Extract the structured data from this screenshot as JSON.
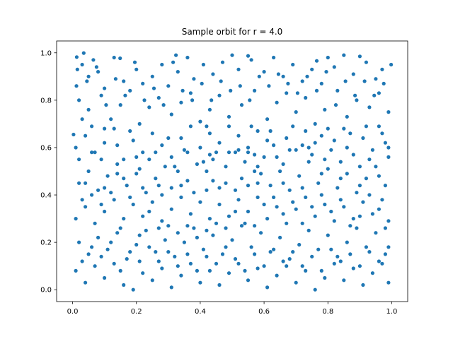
{
  "chart_data": {
    "type": "scatter",
    "title": "Sample orbit for r = 4.0",
    "xlabel": "",
    "ylabel": "",
    "xlim": [
      -0.05,
      1.05
    ],
    "ylim": [
      -0.05,
      1.05
    ],
    "xticks": [
      0.0,
      0.2,
      0.4,
      0.6,
      0.8,
      1.0
    ],
    "xtick_labels": [
      "0.0",
      "0.2",
      "0.4",
      "0.6",
      "0.8",
      "1.0"
    ],
    "yticks": [
      0.0,
      0.2,
      0.4,
      0.6,
      0.8,
      1.0
    ],
    "ytick_labels": [
      "0.0",
      "0.2",
      "0.4",
      "0.6",
      "0.8",
      "1.0"
    ],
    "grid": false,
    "legend": "none",
    "marker_color": "#1f77b4",
    "points": [
      [
        0.003,
        0.655
      ],
      [
        0.013,
        0.982
      ],
      [
        0.035,
        0.999
      ],
      [
        0.065,
        0.97
      ],
      [
        0.149,
        0.977
      ],
      [
        0.324,
        0.99
      ],
      [
        0.5,
        0.99
      ],
      [
        0.55,
        0.987
      ],
      [
        0.765,
        0.966
      ],
      [
        0.8,
        0.98
      ],
      [
        0.9,
        0.985
      ],
      [
        0.998,
        0.95
      ],
      [
        0.012,
        0.86
      ],
      [
        0.03,
        0.95
      ],
      [
        0.05,
        0.9
      ],
      [
        0.08,
        0.92
      ],
      [
        0.1,
        0.85
      ],
      [
        0.13,
        0.98
      ],
      [
        0.16,
        0.88
      ],
      [
        0.2,
        0.93
      ],
      [
        0.22,
        0.87
      ],
      [
        0.25,
        0.9
      ],
      [
        0.28,
        0.95
      ],
      [
        0.3,
        0.86
      ],
      [
        0.33,
        0.92
      ],
      [
        0.36,
        0.98
      ],
      [
        0.38,
        0.89
      ],
      [
        0.41,
        0.95
      ],
      [
        0.44,
        0.91
      ],
      [
        0.47,
        0.96
      ],
      [
        0.52,
        0.93
      ],
      [
        0.56,
        0.97
      ],
      [
        0.6,
        0.92
      ],
      [
        0.63,
        0.98
      ],
      [
        0.66,
        0.9
      ],
      [
        0.69,
        0.95
      ],
      [
        0.72,
        0.88
      ],
      [
        0.75,
        0.93
      ],
      [
        0.78,
        0.87
      ],
      [
        0.82,
        0.94
      ],
      [
        0.85,
        0.99
      ],
      [
        0.88,
        0.91
      ],
      [
        0.92,
        0.96
      ],
      [
        0.95,
        0.89
      ],
      [
        0.97,
        0.93
      ],
      [
        0.02,
        0.8
      ],
      [
        0.05,
        0.76
      ],
      [
        0.09,
        0.82
      ],
      [
        0.12,
        0.72
      ],
      [
        0.15,
        0.78
      ],
      [
        0.18,
        0.84
      ],
      [
        0.21,
        0.7
      ],
      [
        0.24,
        0.77
      ],
      [
        0.27,
        0.81
      ],
      [
        0.31,
        0.74
      ],
      [
        0.34,
        0.79
      ],
      [
        0.37,
        0.83
      ],
      [
        0.4,
        0.71
      ],
      [
        0.43,
        0.76
      ],
      [
        0.46,
        0.82
      ],
      [
        0.49,
        0.73
      ],
      [
        0.53,
        0.78
      ],
      [
        0.57,
        0.84
      ],
      [
        0.61,
        0.72
      ],
      [
        0.64,
        0.79
      ],
      [
        0.67,
        0.83
      ],
      [
        0.7,
        0.75
      ],
      [
        0.73,
        0.81
      ],
      [
        0.76,
        0.7
      ],
      [
        0.79,
        0.76
      ],
      [
        0.83,
        0.84
      ],
      [
        0.86,
        0.73
      ],
      [
        0.89,
        0.8
      ],
      [
        0.93,
        0.77
      ],
      [
        0.96,
        0.83
      ],
      [
        0.99,
        0.75
      ],
      [
        0.01,
        0.6
      ],
      [
        0.04,
        0.65
      ],
      [
        0.07,
        0.58
      ],
      [
        0.1,
        0.62
      ],
      [
        0.13,
        0.68
      ],
      [
        0.16,
        0.55
      ],
      [
        0.19,
        0.63
      ],
      [
        0.22,
        0.58
      ],
      [
        0.25,
        0.66
      ],
      [
        0.28,
        0.61
      ],
      [
        0.31,
        0.56
      ],
      [
        0.34,
        0.64
      ],
      [
        0.37,
        0.69
      ],
      [
        0.4,
        0.6
      ],
      [
        0.43,
        0.66
      ],
      [
        0.46,
        0.62
      ],
      [
        0.49,
        0.69
      ],
      [
        0.52,
        0.65
      ],
      [
        0.55,
        0.6
      ],
      [
        0.58,
        0.67
      ],
      [
        0.61,
        0.63
      ],
      [
        0.64,
        0.56
      ],
      [
        0.67,
        0.64
      ],
      [
        0.7,
        0.59
      ],
      [
        0.73,
        0.67
      ],
      [
        0.76,
        0.62
      ],
      [
        0.79,
        0.55
      ],
      [
        0.82,
        0.63
      ],
      [
        0.85,
        0.68
      ],
      [
        0.88,
        0.57
      ],
      [
        0.91,
        0.64
      ],
      [
        0.94,
        0.59
      ],
      [
        0.97,
        0.66
      ],
      [
        0.99,
        0.6
      ],
      [
        0.02,
        0.45
      ],
      [
        0.05,
        0.5
      ],
      [
        0.08,
        0.42
      ],
      [
        0.11,
        0.48
      ],
      [
        0.14,
        0.53
      ],
      [
        0.17,
        0.44
      ],
      [
        0.2,
        0.49
      ],
      [
        0.23,
        0.41
      ],
      [
        0.26,
        0.47
      ],
      [
        0.29,
        0.52
      ],
      [
        0.31,
        0.43
      ],
      [
        0.33,
        0.5
      ],
      [
        0.36,
        0.46
      ],
      [
        0.39,
        0.53
      ],
      [
        0.62,
        0.44
      ],
      [
        0.65,
        0.5
      ],
      [
        0.68,
        0.42
      ],
      [
        0.71,
        0.48
      ],
      [
        0.74,
        0.54
      ],
      [
        0.77,
        0.45
      ],
      [
        0.8,
        0.51
      ],
      [
        0.83,
        0.43
      ],
      [
        0.86,
        0.49
      ],
      [
        0.89,
        0.41
      ],
      [
        0.92,
        0.47
      ],
      [
        0.95,
        0.52
      ],
      [
        0.98,
        0.44
      ],
      [
        0.01,
        0.3
      ],
      [
        0.04,
        0.35
      ],
      [
        0.07,
        0.28
      ],
      [
        0.1,
        0.33
      ],
      [
        0.13,
        0.38
      ],
      [
        0.16,
        0.3
      ],
      [
        0.19,
        0.36
      ],
      [
        0.22,
        0.31
      ],
      [
        0.25,
        0.37
      ],
      [
        0.28,
        0.29
      ],
      [
        0.31,
        0.34
      ],
      [
        0.34,
        0.39
      ],
      [
        0.37,
        0.32
      ],
      [
        0.4,
        0.37
      ],
      [
        0.43,
        0.3
      ],
      [
        0.46,
        0.36
      ],
      [
        0.49,
        0.31
      ],
      [
        0.52,
        0.38
      ],
      [
        0.55,
        0.33
      ],
      [
        0.58,
        0.39
      ],
      [
        0.61,
        0.3
      ],
      [
        0.64,
        0.35
      ],
      [
        0.67,
        0.28
      ],
      [
        0.7,
        0.34
      ],
      [
        0.73,
        0.39
      ],
      [
        0.76,
        0.31
      ],
      [
        0.79,
        0.36
      ],
      [
        0.82,
        0.29
      ],
      [
        0.85,
        0.35
      ],
      [
        0.88,
        0.3
      ],
      [
        0.91,
        0.37
      ],
      [
        0.94,
        0.32
      ],
      [
        0.97,
        0.38
      ],
      [
        0.99,
        0.29
      ],
      [
        0.02,
        0.2
      ],
      [
        0.05,
        0.15
      ],
      [
        0.08,
        0.22
      ],
      [
        0.11,
        0.17
      ],
      [
        0.14,
        0.24
      ],
      [
        0.17,
        0.13
      ],
      [
        0.2,
        0.19
      ],
      [
        0.23,
        0.25
      ],
      [
        0.26,
        0.16
      ],
      [
        0.29,
        0.21
      ],
      [
        0.32,
        0.14
      ],
      [
        0.35,
        0.2
      ],
      [
        0.38,
        0.26
      ],
      [
        0.41,
        0.17
      ],
      [
        0.44,
        0.23
      ],
      [
        0.47,
        0.15
      ],
      [
        0.5,
        0.21
      ],
      [
        0.53,
        0.27
      ],
      [
        0.56,
        0.18
      ],
      [
        0.59,
        0.24
      ],
      [
        0.62,
        0.16
      ],
      [
        0.65,
        0.22
      ],
      [
        0.68,
        0.13
      ],
      [
        0.71,
        0.19
      ],
      [
        0.74,
        0.25
      ],
      [
        0.77,
        0.17
      ],
      [
        0.8,
        0.23
      ],
      [
        0.83,
        0.14
      ],
      [
        0.86,
        0.2
      ],
      [
        0.89,
        0.26
      ],
      [
        0.92,
        0.18
      ],
      [
        0.95,
        0.24
      ],
      [
        0.98,
        0.15
      ],
      [
        0.01,
        0.08
      ],
      [
        0.04,
        0.03
      ],
      [
        0.07,
        0.1
      ],
      [
        0.1,
        0.05
      ],
      [
        0.13,
        0.11
      ],
      [
        0.16,
        0.02
      ],
      [
        0.19,
        0.0
      ],
      [
        0.22,
        0.07
      ],
      [
        0.25,
        0.04
      ],
      [
        0.28,
        0.09
      ],
      [
        0.31,
        0.01
      ],
      [
        0.34,
        0.06
      ],
      [
        0.37,
        0.11
      ],
      [
        0.4,
        0.03
      ],
      [
        0.43,
        0.08
      ],
      [
        0.46,
        0.02
      ],
      [
        0.49,
        0.07
      ],
      [
        0.52,
        0.11
      ],
      [
        0.55,
        0.04
      ],
      [
        0.58,
        0.09
      ],
      [
        0.61,
        0.01
      ],
      [
        0.64,
        0.06
      ],
      [
        0.67,
        0.1
      ],
      [
        0.7,
        0.03
      ],
      [
        0.73,
        0.08
      ],
      [
        0.76,
        0.0
      ],
      [
        0.79,
        0.05
      ],
      [
        0.82,
        0.11
      ],
      [
        0.85,
        0.04
      ],
      [
        0.88,
        0.09
      ],
      [
        0.91,
        0.02
      ],
      [
        0.94,
        0.07
      ],
      [
        0.97,
        0.11
      ],
      [
        0.99,
        0.03
      ],
      [
        0.03,
        0.72
      ],
      [
        0.06,
        0.69
      ],
      [
        0.09,
        0.55
      ],
      [
        0.14,
        0.61
      ],
      [
        0.18,
        0.67
      ],
      [
        0.21,
        0.51
      ],
      [
        0.24,
        0.55
      ],
      [
        0.27,
        0.44
      ],
      [
        0.3,
        0.64
      ],
      [
        0.35,
        0.59
      ],
      [
        0.38,
        0.41
      ],
      [
        0.44,
        0.55
      ],
      [
        0.48,
        0.52
      ],
      [
        0.51,
        0.58
      ],
      [
        0.54,
        0.54
      ],
      [
        0.57,
        0.5
      ],
      [
        0.6,
        0.56
      ],
      [
        0.63,
        0.61
      ],
      [
        0.66,
        0.53
      ],
      [
        0.69,
        0.69
      ],
      [
        0.72,
        0.61
      ],
      [
        0.75,
        0.57
      ],
      [
        0.78,
        0.65
      ],
      [
        0.81,
        0.59
      ],
      [
        0.84,
        0.54
      ],
      [
        0.87,
        0.66
      ],
      [
        0.9,
        0.52
      ],
      [
        0.93,
        0.55
      ],
      [
        0.96,
        0.69
      ],
      [
        0.99,
        0.56
      ],
      [
        0.03,
        0.38
      ],
      [
        0.06,
        0.4
      ],
      [
        0.09,
        0.36
      ],
      [
        0.12,
        0.41
      ],
      [
        0.15,
        0.26
      ],
      [
        0.18,
        0.39
      ],
      [
        0.21,
        0.23
      ],
      [
        0.24,
        0.33
      ],
      [
        0.27,
        0.26
      ],
      [
        0.3,
        0.27
      ],
      [
        0.33,
        0.24
      ],
      [
        0.36,
        0.27
      ],
      [
        0.39,
        0.22
      ],
      [
        0.42,
        0.25
      ],
      [
        0.45,
        0.28
      ],
      [
        0.48,
        0.26
      ],
      [
        0.51,
        0.33
      ],
      [
        0.54,
        0.28
      ],
      [
        0.57,
        0.27
      ],
      [
        0.6,
        0.36
      ],
      [
        0.63,
        0.39
      ],
      [
        0.66,
        0.32
      ],
      [
        0.69,
        0.37
      ],
      [
        0.72,
        0.28
      ],
      [
        0.75,
        0.35
      ],
      [
        0.78,
        0.4
      ],
      [
        0.81,
        0.33
      ],
      [
        0.84,
        0.38
      ],
      [
        0.87,
        0.27
      ],
      [
        0.9,
        0.31
      ],
      [
        0.93,
        0.4
      ],
      [
        0.96,
        0.34
      ],
      [
        0.98,
        0.26
      ],
      [
        0.03,
        0.12
      ],
      [
        0.06,
        0.18
      ],
      [
        0.09,
        0.14
      ],
      [
        0.12,
        0.2
      ],
      [
        0.15,
        0.08
      ],
      [
        0.18,
        0.16
      ],
      [
        0.21,
        0.12
      ],
      [
        0.24,
        0.18
      ],
      [
        0.27,
        0.12
      ],
      [
        0.3,
        0.16
      ],
      [
        0.33,
        0.1
      ],
      [
        0.36,
        0.15
      ],
      [
        0.39,
        0.08
      ],
      [
        0.42,
        0.14
      ],
      [
        0.45,
        0.11
      ],
      [
        0.48,
        0.18
      ],
      [
        0.51,
        0.13
      ],
      [
        0.54,
        0.08
      ],
      [
        0.57,
        0.15
      ],
      [
        0.6,
        0.1
      ],
      [
        0.63,
        0.17
      ],
      [
        0.66,
        0.12
      ],
      [
        0.69,
        0.16
      ],
      [
        0.72,
        0.1
      ],
      [
        0.75,
        0.14
      ],
      [
        0.78,
        0.08
      ],
      [
        0.81,
        0.17
      ],
      [
        0.84,
        0.12
      ],
      [
        0.87,
        0.15
      ],
      [
        0.9,
        0.1
      ],
      [
        0.93,
        0.16
      ],
      [
        0.96,
        0.12
      ],
      [
        0.99,
        0.18
      ],
      [
        0.015,
        0.93
      ],
      [
        0.045,
        0.88
      ],
      [
        0.075,
        0.94
      ],
      [
        0.105,
        0.78
      ],
      [
        0.135,
        0.89
      ],
      [
        0.165,
        0.82
      ],
      [
        0.195,
        0.96
      ],
      [
        0.225,
        0.8
      ],
      [
        0.255,
        0.85
      ],
      [
        0.285,
        0.78
      ],
      [
        0.315,
        0.96
      ],
      [
        0.345,
        0.84
      ],
      [
        0.375,
        0.8
      ],
      [
        0.405,
        0.87
      ],
      [
        0.435,
        0.8
      ],
      [
        0.465,
        0.88
      ],
      [
        0.495,
        0.84
      ],
      [
        0.525,
        0.86
      ],
      [
        0.555,
        0.8
      ],
      [
        0.585,
        0.9
      ],
      [
        0.615,
        0.86
      ],
      [
        0.645,
        0.91
      ],
      [
        0.675,
        0.87
      ],
      [
        0.705,
        0.83
      ],
      [
        0.735,
        0.9
      ],
      [
        0.765,
        0.84
      ],
      [
        0.795,
        0.92
      ],
      [
        0.825,
        0.78
      ],
      [
        0.855,
        0.88
      ],
      [
        0.885,
        0.82
      ],
      [
        0.915,
        0.88
      ],
      [
        0.945,
        0.82
      ],
      [
        0.975,
        0.87
      ],
      [
        0.02,
        0.55
      ],
      [
        0.06,
        0.58
      ],
      [
        0.1,
        0.68
      ],
      [
        0.14,
        0.49
      ],
      [
        0.2,
        0.56
      ],
      [
        0.26,
        0.58
      ],
      [
        0.32,
        0.52
      ],
      [
        0.36,
        0.58
      ],
      [
        0.42,
        0.69
      ],
      [
        0.56,
        0.69
      ],
      [
        0.62,
        0.67
      ],
      [
        0.68,
        0.59
      ],
      [
        0.74,
        0.6
      ],
      [
        0.8,
        0.68
      ],
      [
        0.86,
        0.6
      ],
      [
        0.92,
        0.69
      ],
      [
        0.98,
        0.62
      ],
      [
        0.04,
        0.45
      ],
      [
        0.1,
        0.43
      ],
      [
        0.16,
        0.47
      ],
      [
        0.22,
        0.43
      ],
      [
        0.28,
        0.4
      ],
      [
        0.34,
        0.44
      ],
      [
        0.66,
        0.45
      ],
      [
        0.72,
        0.43
      ],
      [
        0.78,
        0.49
      ],
      [
        0.84,
        0.47
      ],
      [
        0.9,
        0.44
      ],
      [
        0.96,
        0.48
      ],
      [
        0.42,
        0.42
      ],
      [
        0.44,
        0.46
      ],
      [
        0.46,
        0.43
      ],
      [
        0.48,
        0.45
      ],
      [
        0.51,
        0.42
      ],
      [
        0.53,
        0.47
      ],
      [
        0.55,
        0.44
      ],
      [
        0.58,
        0.45
      ],
      [
        0.42,
        0.5
      ],
      [
        0.58,
        0.52
      ],
      [
        0.41,
        0.54
      ],
      [
        0.59,
        0.49
      ],
      [
        0.43,
        0.57
      ],
      [
        0.57,
        0.57
      ],
      [
        0.45,
        0.58
      ],
      [
        0.49,
        0.58
      ],
      [
        0.52,
        0.59
      ],
      [
        0.55,
        0.58
      ]
    ]
  }
}
